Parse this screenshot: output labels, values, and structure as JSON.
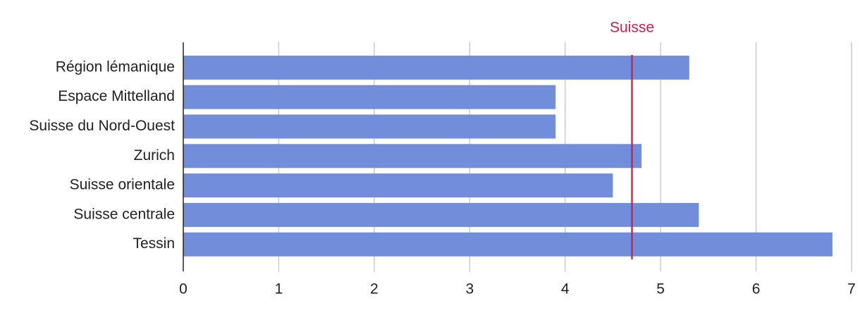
{
  "chart_data": {
    "type": "bar",
    "orientation": "horizontal",
    "categories": [
      "Région lémanique",
      "Espace Mittelland",
      "Suisse du Nord-Ouest",
      "Zurich",
      "Suisse orientale",
      "Suisse centrale",
      "Tessin"
    ],
    "values": [
      5.3,
      3.9,
      3.9,
      4.8,
      4.5,
      5.4,
      6.8
    ],
    "color": "#728dd9",
    "xlim": [
      0,
      7
    ],
    "xticks": [
      0,
      1,
      2,
      3,
      4,
      5,
      6,
      7
    ],
    "grid": true,
    "reference_lines": [
      {
        "label": "Suisse",
        "value": 4.7,
        "color": "#d81b45"
      }
    ]
  }
}
